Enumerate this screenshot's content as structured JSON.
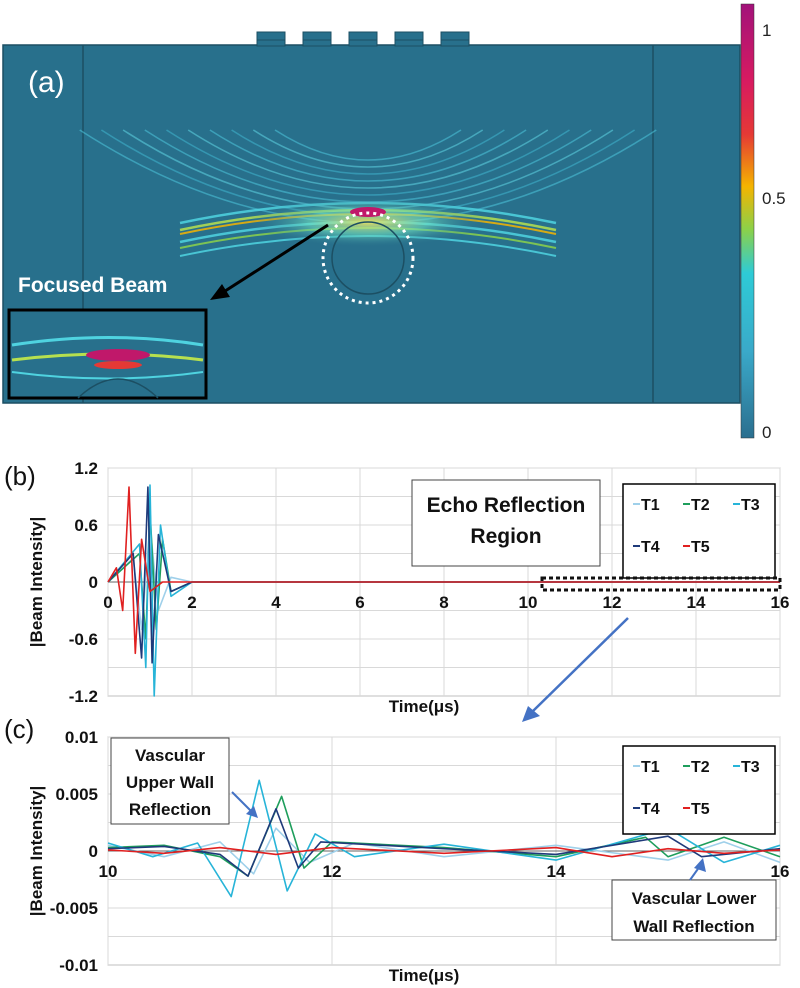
{
  "panel_a": {
    "label": "(a)",
    "inset_title": "Focused Beam",
    "colorbar": {
      "ticks": [
        "1",
        "0.5",
        "0"
      ],
      "tick_values": [
        1,
        0.5,
        0
      ],
      "colors": [
        "#a2127a",
        "#d81b60",
        "#e53935",
        "#f4b400",
        "#8bd14a",
        "#2ecbd6",
        "#3aa9c9",
        "#2b6f8f"
      ]
    },
    "background_color": "#28708c",
    "transducers": 5
  },
  "panel_b": {
    "label": "(b)",
    "annotation": [
      "Echo Reflection",
      "Region"
    ]
  },
  "panel_c": {
    "label": "(c)",
    "annotation_upper": [
      "Vascular",
      "Upper Wall",
      "Reflection"
    ],
    "annotation_lower": [
      "Vascular Lower",
      "Wall Reflection"
    ]
  },
  "chart_data": [
    {
      "type": "line",
      "title": "",
      "xlabel": "Time(μs)",
      "ylabel": "|Beam Intensity|",
      "xlim": [
        0,
        16
      ],
      "ylim": [
        -1.2,
        1.2
      ],
      "xticks": [
        "0",
        "2",
        "4",
        "6",
        "8",
        "10",
        "12",
        "14",
        "16"
      ],
      "yticks": [
        "1.2",
        "0.6",
        "0",
        "-0.6",
        "-1.2"
      ],
      "grid": true,
      "legend": "top-right",
      "series": [
        {
          "name": "T1",
          "color": "#9fd0ea",
          "points": [
            [
              0,
              0
            ],
            [
              0.6,
              0.25
            ],
            [
              0.8,
              -0.5
            ],
            [
              1.0,
              0.6
            ],
            [
              1.2,
              -0.3
            ],
            [
              1.5,
              0.05
            ],
            [
              2,
              0
            ],
            [
              16,
              0
            ]
          ]
        },
        {
          "name": "T2",
          "color": "#1e9e5c",
          "points": [
            [
              0,
              0
            ],
            [
              0.75,
              0.3
            ],
            [
              0.9,
              -0.6
            ],
            [
              1.0,
              0.75
            ],
            [
              1.15,
              -0.5
            ],
            [
              1.3,
              0.45
            ],
            [
              1.5,
              -0.1
            ],
            [
              2,
              0
            ],
            [
              16,
              0
            ]
          ]
        },
        {
          "name": "T3",
          "color": "#27b4d8",
          "points": [
            [
              0,
              0
            ],
            [
              0.75,
              0.4
            ],
            [
              0.9,
              -0.9
            ],
            [
              1.0,
              1.02
            ],
            [
              1.1,
              -1.2
            ],
            [
              1.25,
              0.6
            ],
            [
              1.5,
              -0.15
            ],
            [
              2,
              0
            ],
            [
              16,
              0
            ]
          ]
        },
        {
          "name": "T4",
          "color": "#1f3a7a",
          "points": [
            [
              0,
              0
            ],
            [
              0.6,
              0.3
            ],
            [
              0.8,
              -0.8
            ],
            [
              0.95,
              1.0
            ],
            [
              1.05,
              -0.85
            ],
            [
              1.2,
              0.5
            ],
            [
              1.5,
              -0.1
            ],
            [
              2,
              0
            ],
            [
              16,
              0
            ]
          ]
        },
        {
          "name": "T5",
          "color": "#e02020",
          "points": [
            [
              0,
              0
            ],
            [
              0.2,
              0.15
            ],
            [
              0.35,
              -0.3
            ],
            [
              0.5,
              1.0
            ],
            [
              0.65,
              -0.75
            ],
            [
              0.8,
              0.45
            ],
            [
              1.0,
              -0.1
            ],
            [
              1.3,
              0
            ],
            [
              16,
              0
            ]
          ]
        }
      ]
    },
    {
      "type": "line",
      "title": "",
      "xlabel": "Time(μs)",
      "ylabel": "|Beam Intensity|",
      "xlim": [
        10,
        16
      ],
      "ylim": [
        -0.01,
        0.01
      ],
      "xticks": [
        "10",
        "12",
        "14",
        "16"
      ],
      "yticks": [
        "0.01",
        "0.005",
        "0",
        "-0.005",
        "-0.01"
      ],
      "grid": true,
      "legend": "top-right",
      "series": [
        {
          "name": "T1",
          "color": "#9fd0ea",
          "points": [
            [
              10,
              0.0005
            ],
            [
              10.5,
              -0.0005
            ],
            [
              11,
              0.0008
            ],
            [
              11.3,
              -0.002
            ],
            [
              11.5,
              0.002
            ],
            [
              11.8,
              -0.001
            ],
            [
              12.2,
              0.0007
            ],
            [
              13,
              -0.0005
            ],
            [
              14,
              0.0005
            ],
            [
              15,
              -0.0008
            ],
            [
              15.5,
              0.0008
            ],
            [
              16,
              -0.001
            ]
          ]
        },
        {
          "name": "T2",
          "color": "#1e9e5c",
          "points": [
            [
              10,
              0.0003
            ],
            [
              10.5,
              0.0005
            ],
            [
              11,
              -0.0005
            ],
            [
              11.25,
              -0.0022
            ],
            [
              11.55,
              0.0048
            ],
            [
              11.75,
              -0.0015
            ],
            [
              12,
              0.0008
            ],
            [
              13,
              0.0003
            ],
            [
              14,
              -0.0005
            ],
            [
              14.8,
              0.0012
            ],
            [
              15,
              -0.0005
            ],
            [
              15.5,
              0.0012
            ],
            [
              16,
              -0.0005
            ]
          ]
        },
        {
          "name": "T3",
          "color": "#27b4d8",
          "points": [
            [
              10,
              0.0007
            ],
            [
              10.4,
              -0.0005
            ],
            [
              10.8,
              0.0007
            ],
            [
              11.1,
              -0.004
            ],
            [
              11.35,
              0.0062
            ],
            [
              11.6,
              -0.0035
            ],
            [
              11.85,
              0.0015
            ],
            [
              12.2,
              -0.0005
            ],
            [
              13,
              0.0006
            ],
            [
              14,
              -0.0008
            ],
            [
              15,
              0.002
            ],
            [
              15.5,
              -0.001
            ],
            [
              16,
              0.0005
            ]
          ]
        },
        {
          "name": "T4",
          "color": "#1f3a7a",
          "points": [
            [
              10,
              0.0002
            ],
            [
              10.5,
              0.0004
            ],
            [
              11,
              -0.0003
            ],
            [
              11.25,
              -0.0022
            ],
            [
              11.5,
              0.0037
            ],
            [
              11.7,
              -0.0015
            ],
            [
              11.9,
              0.0008
            ],
            [
              13,
              0.0002
            ],
            [
              14,
              -0.0003
            ],
            [
              15,
              0.0013
            ],
            [
              15.3,
              -0.0005
            ],
            [
              16,
              0.0002
            ]
          ]
        },
        {
          "name": "T5",
          "color": "#e02020",
          "points": [
            [
              10,
              0.0001
            ],
            [
              10.5,
              -0.0002
            ],
            [
              11,
              0.0003
            ],
            [
              11.5,
              -0.0003
            ],
            [
              12,
              0.0003
            ],
            [
              13,
              -0.0002
            ],
            [
              14,
              0.0003
            ],
            [
              14.5,
              -0.0005
            ],
            [
              15,
              0.0002
            ],
            [
              15.5,
              -0.0002
            ],
            [
              16,
              0.0001
            ]
          ]
        }
      ]
    }
  ]
}
